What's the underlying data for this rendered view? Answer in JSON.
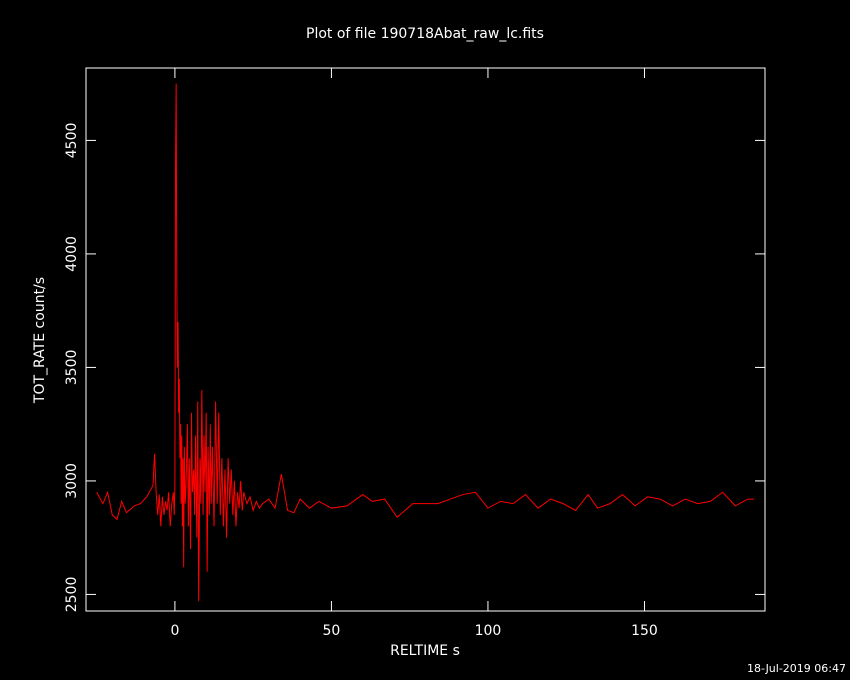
{
  "chart_data": {
    "type": "line",
    "title": "Plot of file 190718Abat_raw_lc.fits",
    "x_label": "RELTIME  s",
    "y_label": "TOT_RATE  count/s",
    "timestamp": "18-Jul-2019 06:47",
    "x": [
      -25,
      -23,
      -21.5,
      -20,
      -18.5,
      -17,
      -15.5,
      -13,
      -11,
      -9,
      -7,
      -6.5,
      -6,
      -5.5,
      -5,
      -4.5,
      -4,
      -3.5,
      -3,
      -2.5,
      -2,
      -1.5,
      -1,
      -0.5,
      -0.2,
      0,
      0.2,
      0.4,
      0.6,
      0.8,
      1,
      1.2,
      1.4,
      1.6,
      1.8,
      2,
      2.2,
      2.4,
      2.6,
      2.8,
      3,
      3.3,
      3.6,
      4,
      4.3,
      4.6,
      5,
      5.3,
      5.6,
      6,
      6.3,
      6.6,
      7,
      7.3,
      7.6,
      8,
      8.3,
      8.6,
      9,
      9.3,
      9.6,
      10,
      10.3,
      10.6,
      11,
      11.3,
      11.6,
      12,
      12.5,
      13,
      13.5,
      14,
      14.5,
      15,
      15.5,
      16,
      16.5,
      17,
      17.5,
      18,
      18.5,
      19,
      19.5,
      20,
      20.5,
      21,
      21.5,
      22,
      23,
      24,
      25,
      26,
      27,
      28,
      30,
      32,
      34,
      36,
      38,
      40,
      43,
      46,
      50,
      55,
      60,
      63,
      67,
      71,
      76,
      80,
      84,
      88,
      92,
      96,
      100,
      104,
      108,
      112,
      116,
      120,
      124,
      128,
      132,
      135,
      139,
      143,
      147,
      151,
      155,
      159,
      163,
      167,
      171,
      175,
      179,
      183,
      185
    ],
    "series": [
      {
        "color": "#ff0000",
        "values": [
          2950,
          2900,
          2950,
          2850,
          2830,
          2910,
          2860,
          2890,
          2900,
          2930,
          2980,
          3120,
          2950,
          2850,
          2940,
          2800,
          2930,
          2850,
          2910,
          2870,
          2950,
          2800,
          2900,
          2950,
          2850,
          2990,
          4400,
          4750,
          3900,
          3500,
          3700,
          3300,
          3450,
          3100,
          3250,
          2900,
          3200,
          2800,
          3100,
          2620,
          3150,
          2900,
          3000,
          3250,
          2800,
          3100,
          2700,
          3300,
          2950,
          3050,
          2850,
          3200,
          2750,
          3350,
          2470,
          3100,
          2900,
          3400,
          2850,
          3200,
          2950,
          3300,
          2600,
          3150,
          2850,
          3250,
          2900,
          3150,
          2800,
          3350,
          2900,
          3300,
          2850,
          3100,
          2800,
          3050,
          2750,
          3100,
          2900,
          3050,
          2850,
          3000,
          2800,
          2950,
          2880,
          3000,
          2870,
          2950,
          2900,
          2930,
          2870,
          2910,
          2880,
          2900,
          2920,
          2880,
          3030,
          2870,
          2860,
          2920,
          2880,
          2910,
          2880,
          2890,
          2940,
          2910,
          2920,
          2840,
          2900,
          2900,
          2900,
          2920,
          2940,
          2950,
          2880,
          2910,
          2900,
          2940,
          2880,
          2920,
          2900,
          2870,
          2940,
          2880,
          2900,
          2940,
          2890,
          2930,
          2920,
          2890,
          2920,
          2900,
          2910,
          2950,
          2890,
          2920,
          2920
        ]
      }
    ],
    "xlim": [
      -28.4,
      188.5
    ],
    "ylim": [
      2427,
      4819
    ],
    "xticks": [
      0,
      50,
      100,
      150
    ],
    "yticks": [
      2500,
      3000,
      3500,
      4000,
      4500
    ],
    "grid": false
  }
}
